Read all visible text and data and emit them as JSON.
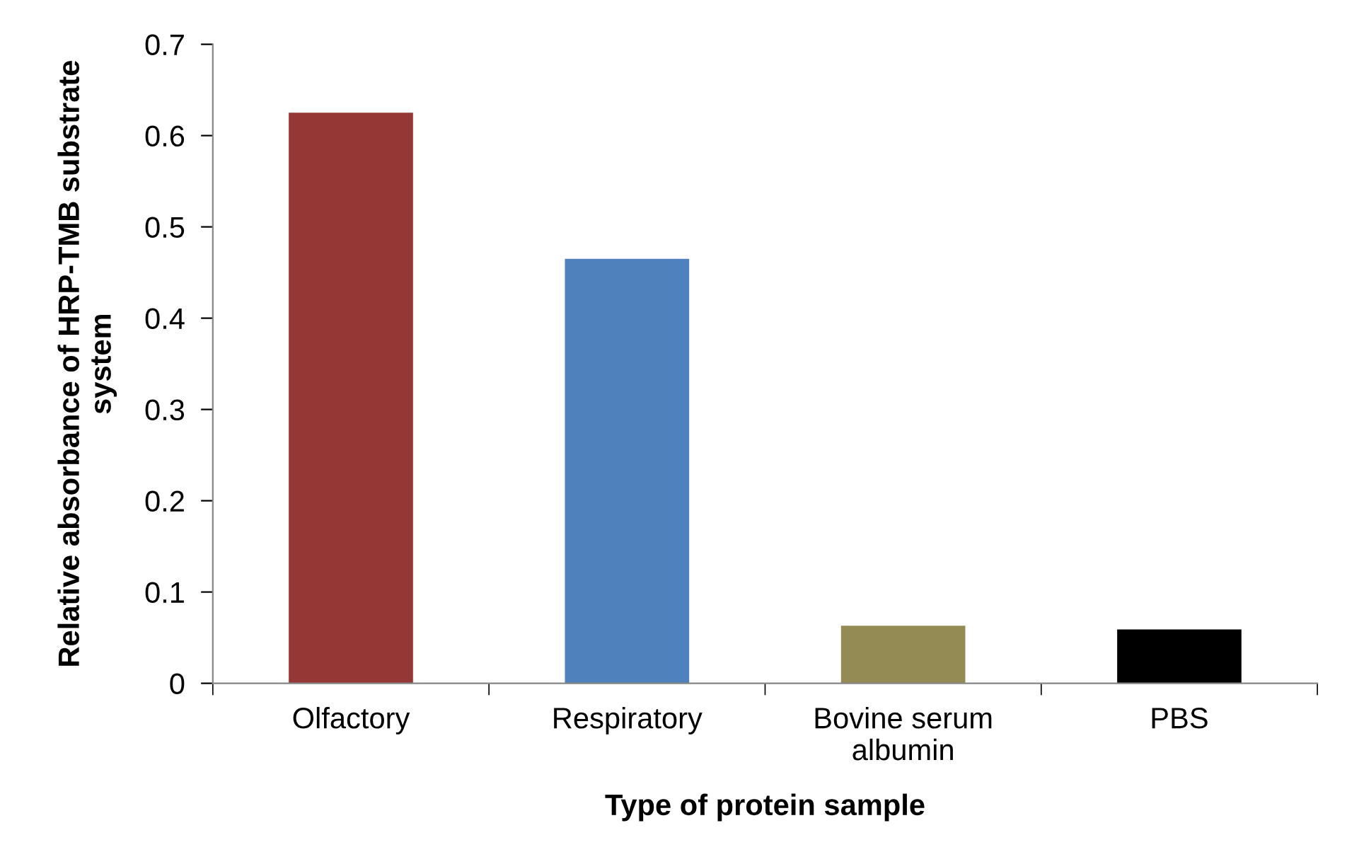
{
  "chart_data": {
    "type": "bar",
    "xlabel": "Type of protein sample",
    "ylabel": "Relative absorbance of HRP-TMB substrate\nsystem",
    "categories": [
      "Olfactory",
      "Respiratory",
      "Bovine serum\nalbumin",
      "PBS"
    ],
    "values": [
      0.625,
      0.465,
      0.063,
      0.059
    ],
    "colors": [
      "#953735",
      "#4f81bd",
      "#948a54",
      "#000000"
    ],
    "ylim": [
      0,
      0.7
    ],
    "yticks": [
      0,
      0.1,
      0.2,
      0.3,
      0.4,
      0.5,
      0.6,
      0.7
    ],
    "grid": false,
    "legend": false
  }
}
